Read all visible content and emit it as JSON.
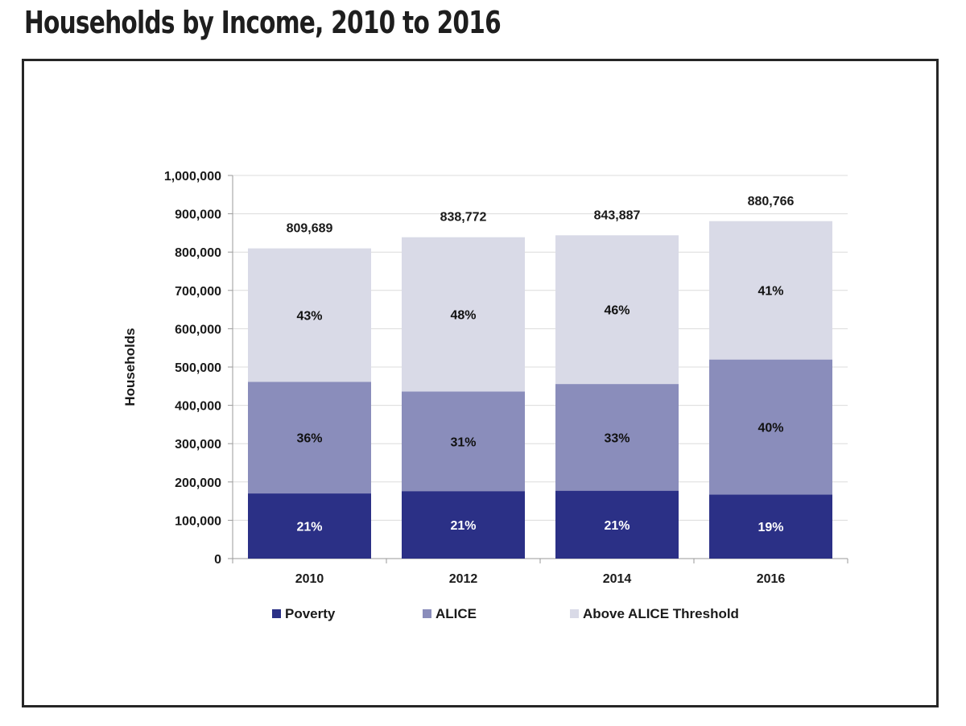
{
  "page": {
    "title": "Households by Income, 2010 to 2016"
  },
  "chart_data": {
    "type": "bar",
    "stacked": true,
    "title": "",
    "xlabel": "",
    "ylabel": "Households",
    "ylim": [
      0,
      1000000
    ],
    "y_ticks": [
      0,
      100000,
      200000,
      300000,
      400000,
      500000,
      600000,
      700000,
      800000,
      900000,
      1000000
    ],
    "y_tick_labels": [
      "0",
      "100,000",
      "200,000",
      "300,000",
      "400,000",
      "500,000",
      "600,000",
      "700,000",
      "800,000",
      "900,000",
      "1,000,000"
    ],
    "grid": true,
    "legend_position": "bottom",
    "categories": [
      "2010",
      "2012",
      "2014",
      "2016"
    ],
    "totals": [
      809689,
      838772,
      843887,
      880766
    ],
    "total_labels": [
      "809,689",
      "838,772",
      "843,887",
      "880,766"
    ],
    "series": [
      {
        "name": "Poverty",
        "color": "#2b3086",
        "label_color": "#ffffff",
        "values": [
          170035,
          176142,
          177216,
          167346
        ],
        "labels": [
          "21%",
          "21%",
          "21%",
          "19%"
        ]
      },
      {
        "name": "ALICE",
        "color": "#8a8dbb",
        "label_color": "#111111",
        "values": [
          291488,
          260019,
          278483,
          352306
        ],
        "labels": [
          "36%",
          "31%",
          "33%",
          "40%"
        ]
      },
      {
        "name": "Above ALICE Threshold",
        "color": "#d9dae7",
        "label_color": "#111111",
        "values": [
          348166,
          402611,
          388188,
          361114
        ],
        "labels": [
          "43%",
          "48%",
          "46%",
          "41%"
        ]
      }
    ]
  }
}
